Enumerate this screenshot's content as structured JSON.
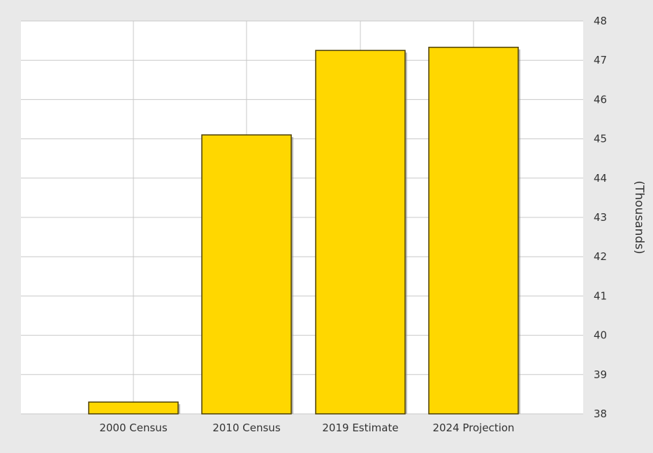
{
  "chart_data": {
    "type": "bar",
    "categories": [
      "2000 Census",
      "2010 Census",
      "2019 Estimate",
      "2024 Projection"
    ],
    "values": [
      38.3,
      45.1,
      47.25,
      47.33
    ],
    "ylabel": "(Thousands)",
    "ylim": [
      38,
      48
    ],
    "yticks": [
      38,
      39,
      40,
      41,
      42,
      43,
      44,
      45,
      46,
      47,
      48
    ],
    "grid": true,
    "y_axis_side": "right",
    "colors": {
      "bar_fill": "#ffd700",
      "bar_stroke": "#4a3d00",
      "plot_bg": "#ffffff",
      "page_bg": "#e9e9e9",
      "grid": "#c8c8c8",
      "text": "#333333"
    }
  }
}
